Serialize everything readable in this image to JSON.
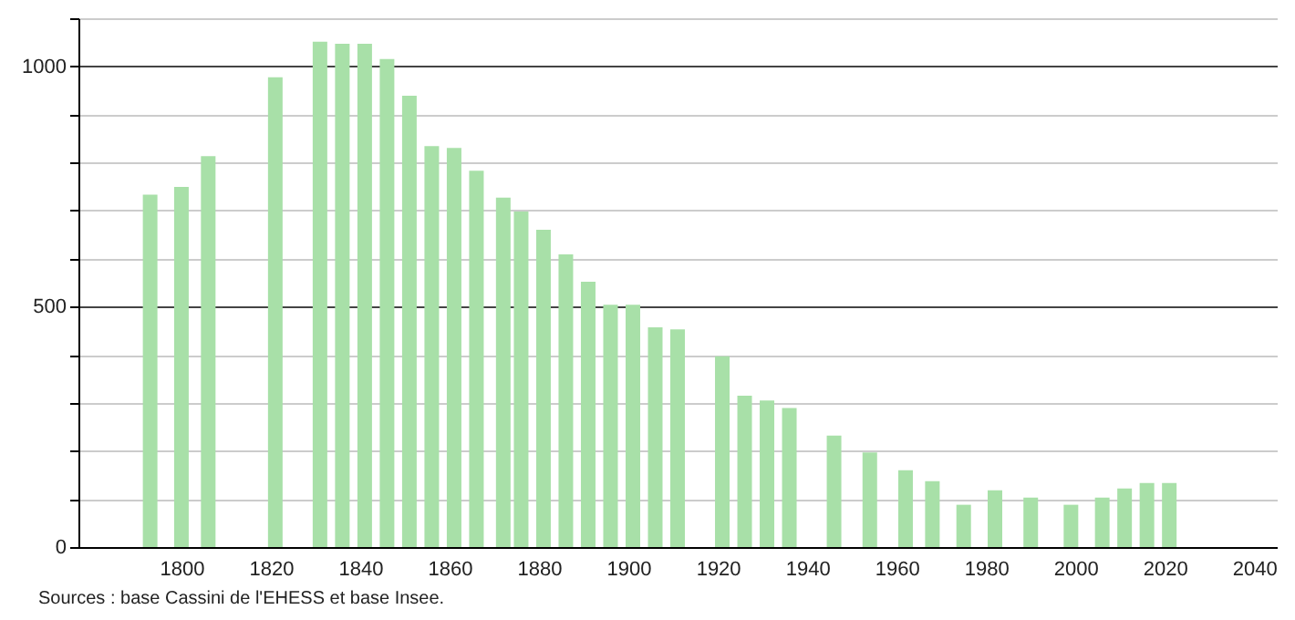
{
  "chart_data": {
    "type": "bar",
    "x": [
      1793,
      1800,
      1806,
      1821,
      1831,
      1836,
      1841,
      1846,
      1851,
      1856,
      1861,
      1866,
      1872,
      1876,
      1881,
      1886,
      1891,
      1896,
      1901,
      1906,
      1911,
      1921,
      1926,
      1931,
      1936,
      1946,
      1954,
      1962,
      1968,
      1975,
      1982,
      1990,
      1999,
      2006,
      2011,
      2016,
      2021
    ],
    "values": [
      733,
      749,
      813,
      977,
      1051,
      1047,
      1047,
      1015,
      939,
      834,
      830,
      783,
      727,
      698,
      660,
      609,
      552,
      504,
      504,
      457,
      453,
      397,
      315,
      305,
      289,
      232,
      197,
      160,
      137,
      88,
      118,
      103,
      88,
      103,
      122,
      133,
      133
    ],
    "color": "#a8e0a8",
    "xlim": [
      1779,
      2043
    ],
    "xticks": [
      1800,
      1820,
      1840,
      1860,
      1880,
      1900,
      1920,
      1940,
      1960,
      1980,
      2000,
      2020,
      2040
    ],
    "ylim": [
      0,
      1100
    ],
    "yticks": [
      0,
      {
        "value": 100,
        "label": null
      },
      {
        "value": 200,
        "label": null
      },
      {
        "value": 300,
        "label": null
      },
      {
        "value": 400,
        "label": null
      },
      500,
      {
        "value": 600,
        "label": null
      },
      {
        "value": 700,
        "label": null
      },
      {
        "value": 800,
        "label": null
      },
      {
        "value": 900,
        "label": null
      },
      1000,
      {
        "value": 1100,
        "label": null
      }
    ],
    "grid": "y",
    "annotations": [
      "Sources : base Cassini de l'EHESS et base Insee."
    ]
  }
}
